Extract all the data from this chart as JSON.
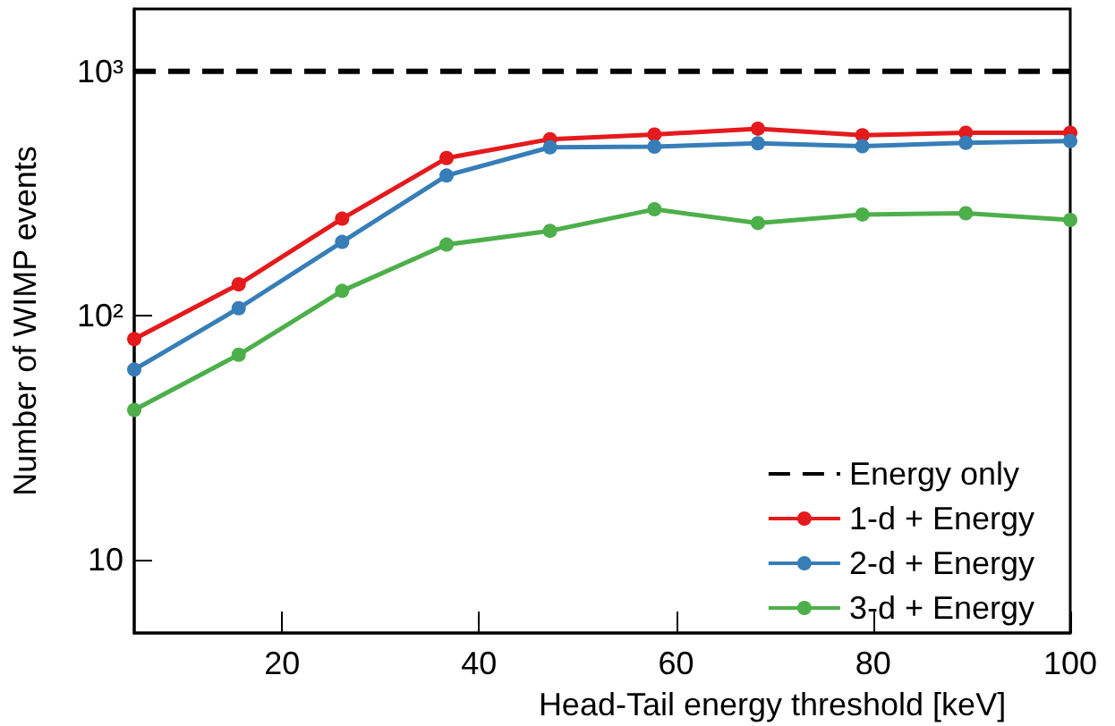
{
  "chart_data": {
    "type": "line",
    "xlabel": "Head-Tail energy threshold [keV]",
    "ylabel": "Number of WIMP events",
    "x": [
      5,
      15.6,
      26.1,
      36.7,
      47.2,
      57.8,
      68.3,
      78.9,
      89.4,
      100
    ],
    "series": [
      {
        "name": "Energy only",
        "color": "#000000",
        "x": [
          5,
          100
        ],
        "values": [
          1000,
          1000
        ],
        "line_style": "dashed",
        "marker": "none"
      },
      {
        "name": "1-d + Energy",
        "color": "#e41a1c",
        "values": [
          80,
          134,
          249,
          441,
          527,
          551,
          582,
          547,
          560,
          560
        ]
      },
      {
        "name": "2-d + Energy",
        "color": "#377eb8",
        "values": [
          60,
          107,
          200,
          374,
          488,
          491,
          507,
          493,
          509,
          518
        ]
      },
      {
        "name": "3-d + Energy",
        "color": "#4daf4a",
        "values": [
          41,
          69,
          126,
          195,
          222,
          272,
          239,
          259,
          262,
          246
        ]
      }
    ],
    "marker": "circle",
    "line_style": "solid",
    "log": "y",
    "grid": false,
    "legend": "bottom right",
    "xlim": [
      5,
      100
    ],
    "xticks": [
      20,
      40,
      60,
      80,
      100
    ],
    "ylim": [
      5,
      1800
    ],
    "yticks": [
      10,
      {
        "value": 100,
        "label": "10²"
      },
      {
        "value": 1000,
        "label": "10³"
      }
    ]
  }
}
